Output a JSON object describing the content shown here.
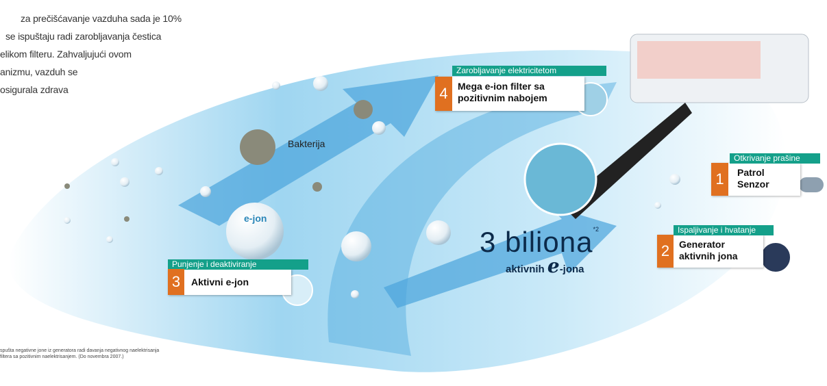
{
  "intro": {
    "lines": [
      "za prečišćavanje vazduha sada je 10%",
      "se ispuštaju radi zarobljavanja čestica",
      "elikom filteru. Zahvaljujući ovom",
      "anizmu, vazduh se",
      "osigurala zdrava"
    ]
  },
  "labels": {
    "bacteria": "Bakterija",
    "ion": "e-jon"
  },
  "steps": [
    {
      "number": "4",
      "header": "Zarobljavanje elektricitetom",
      "lines": [
        "Mega e-ion filter sa",
        "pozitivnim nabojem"
      ]
    },
    {
      "number": "1",
      "header": "Otkrivanje prašine",
      "lines": [
        "Patrol",
        "Senzor"
      ]
    },
    {
      "number": "2",
      "header": "Ispaljivanje i hvatanje",
      "lines": [
        "Generator",
        "aktivnih jona"
      ]
    },
    {
      "number": "3",
      "header": "Punjenje i deaktiviranje",
      "lines": [
        "Aktivni e-jon"
      ]
    }
  ],
  "headline": {
    "main": "3 biliona",
    "note": "*2",
    "prefix": "aktivnih",
    "letter": "e",
    "suffix": "-jona"
  },
  "footnote": {
    "lines": [
      "spušta negativne jone iz generatora radi davanja negativnog naelektrisanja",
      "filtera sa pozitivnim naelektrisanjem. (Do novembra 2007.)"
    ]
  }
}
